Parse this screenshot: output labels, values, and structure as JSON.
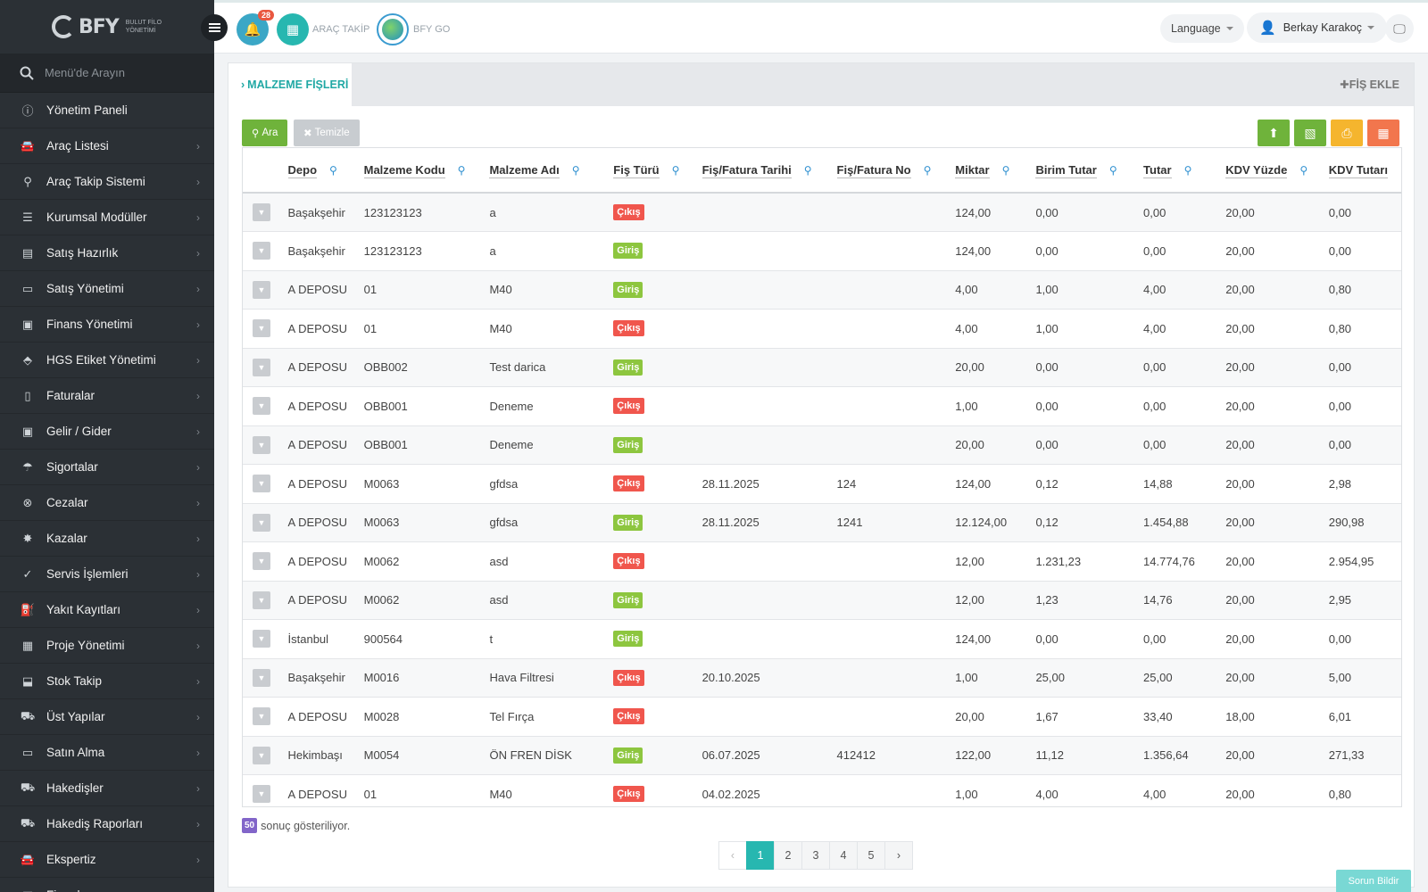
{
  "brand": {
    "name": "BFY",
    "subtitle_line1": "BULUT FİLO",
    "subtitle_line2": "YÖNETİMİ"
  },
  "sidebar": {
    "search_placeholder": "Menü'de Arayın",
    "items": [
      {
        "label": "Yönetim Paneli",
        "icon": "info-icon",
        "glyph": "ⓘ"
      },
      {
        "label": "Araç Listesi",
        "icon": "car-icon",
        "glyph": "🚘"
      },
      {
        "label": "Araç Takip Sistemi",
        "icon": "map-pin-icon",
        "glyph": "⚲"
      },
      {
        "label": "Kurumsal Modüller",
        "icon": "server-icon",
        "glyph": "☰"
      },
      {
        "label": "Satış Hazırlık",
        "icon": "book-icon",
        "glyph": "▤"
      },
      {
        "label": "Satış Yönetimi",
        "icon": "credit-card-icon",
        "glyph": "▭"
      },
      {
        "label": "Finans Yönetimi",
        "icon": "money-icon",
        "glyph": "▣"
      },
      {
        "label": "HGS Etiket Yönetimi",
        "icon": "tag-icon",
        "glyph": "⬘"
      },
      {
        "label": "Faturalar",
        "icon": "file-icon",
        "glyph": "▯"
      },
      {
        "label": "Gelir / Gider",
        "icon": "cash-icon",
        "glyph": "▣"
      },
      {
        "label": "Sigortalar",
        "icon": "umbrella-icon",
        "glyph": "☂"
      },
      {
        "label": "Cezalar",
        "icon": "x-circle-icon",
        "glyph": "⊗"
      },
      {
        "label": "Kazalar",
        "icon": "car-crash-icon",
        "glyph": "✸"
      },
      {
        "label": "Servis İşlemleri",
        "icon": "check-circle-icon",
        "glyph": "✓"
      },
      {
        "label": "Yakıt Kayıtları",
        "icon": "fuel-icon",
        "glyph": "⛽"
      },
      {
        "label": "Proje Yönetimi",
        "icon": "briefcase-icon",
        "glyph": "▦"
      },
      {
        "label": "Stok Takip",
        "icon": "inbox-icon",
        "glyph": "⬓"
      },
      {
        "label": "Üst Yapılar",
        "icon": "truck-icon",
        "glyph": "⛟"
      },
      {
        "label": "Satın Alma",
        "icon": "card-icon",
        "glyph": "▭"
      },
      {
        "label": "Hakedişler",
        "icon": "truck-icon",
        "glyph": "⛟"
      },
      {
        "label": "Hakediş Raporları",
        "icon": "truck-icon",
        "glyph": "⛟"
      },
      {
        "label": "Ekspertiz",
        "icon": "car-icon",
        "glyph": "🚘"
      },
      {
        "label": "Firmalar",
        "icon": "building-icon",
        "glyph": "▥"
      }
    ]
  },
  "topbar": {
    "notifications_count": "28",
    "arac_takip": "ARAÇ TAKİP",
    "bfy_go": "BFY GO",
    "language": "Language",
    "user_name": "Berkay Karakoç"
  },
  "page": {
    "tab_label": "MALZEME FİŞLERİ",
    "add_label": "FİŞ EKLE",
    "search_btn": "Ara",
    "clear_btn": "Temizle"
  },
  "table": {
    "headers": [
      "Depo",
      "Malzeme Kodu",
      "Malzeme Adı",
      "Fiş Türü",
      "Fiş/Fatura Tarihi",
      "Fiş/Fatura No",
      "Miktar",
      "Birim Tutar",
      "Tutar",
      "KDV Yüzde",
      "KDV Tutarı"
    ],
    "rows": [
      [
        "Başakşehir",
        "123123123",
        "a",
        "Çıkış",
        "",
        "",
        "124,00",
        "0,00",
        "0,00",
        "20,00",
        "0,00"
      ],
      [
        "Başakşehir",
        "123123123",
        "a",
        "Giriş",
        "",
        "",
        "124,00",
        "0,00",
        "0,00",
        "20,00",
        "0,00"
      ],
      [
        "A DEPOSU",
        "01",
        "M40",
        "Giriş",
        "",
        "",
        "4,00",
        "1,00",
        "4,00",
        "20,00",
        "0,80"
      ],
      [
        "A DEPOSU",
        "01",
        "M40",
        "Çıkış",
        "",
        "",
        "4,00",
        "1,00",
        "4,00",
        "20,00",
        "0,80"
      ],
      [
        "A DEPOSU",
        "OBB002",
        "Test darica",
        "Giriş",
        "",
        "",
        "20,00",
        "0,00",
        "0,00",
        "20,00",
        "0,00"
      ],
      [
        "A DEPOSU",
        "OBB001",
        "Deneme",
        "Çıkış",
        "",
        "",
        "1,00",
        "0,00",
        "0,00",
        "20,00",
        "0,00"
      ],
      [
        "A DEPOSU",
        "OBB001",
        "Deneme",
        "Giriş",
        "",
        "",
        "20,00",
        "0,00",
        "0,00",
        "20,00",
        "0,00"
      ],
      [
        "A DEPOSU",
        "M0063",
        "gfdsa",
        "Çıkış",
        "28.11.2025",
        "124",
        "124,00",
        "0,12",
        "14,88",
        "20,00",
        "2,98"
      ],
      [
        "A DEPOSU",
        "M0063",
        "gfdsa",
        "Giriş",
        "28.11.2025",
        "1241",
        "12.124,00",
        "0,12",
        "1.454,88",
        "20,00",
        "290,98"
      ],
      [
        "A DEPOSU",
        "M0062",
        "asd",
        "Çıkış",
        "",
        "",
        "12,00",
        "1.231,23",
        "14.774,76",
        "20,00",
        "2.954,95"
      ],
      [
        "A DEPOSU",
        "M0062",
        "asd",
        "Giriş",
        "",
        "",
        "12,00",
        "1,23",
        "14,76",
        "20,00",
        "2,95"
      ],
      [
        "İstanbul",
        "900564",
        "t",
        "Giriş",
        "",
        "",
        "124,00",
        "0,00",
        "0,00",
        "20,00",
        "0,00"
      ],
      [
        "Başakşehir",
        "M0016",
        "Hava Filtresi",
        "Çıkış",
        "20.10.2025",
        "",
        "1,00",
        "25,00",
        "25,00",
        "20,00",
        "5,00"
      ],
      [
        "A DEPOSU",
        "M0028",
        "Tel Fırça",
        "Çıkış",
        "",
        "",
        "20,00",
        "1,67",
        "33,40",
        "18,00",
        "6,01"
      ],
      [
        "Hekimbaşı",
        "M0054",
        "ÖN FREN DİSK",
        "Giriş",
        "06.07.2025",
        "412412",
        "122,00",
        "11,12",
        "1.356,64",
        "20,00",
        "271,33"
      ],
      [
        "A DEPOSU",
        "01",
        "M40",
        "Çıkış",
        "04.02.2025",
        "",
        "1,00",
        "4,00",
        "4,00",
        "20,00",
        "0,80"
      ]
    ]
  },
  "result": {
    "count": "50",
    "text": "sonuç gösteriliyor."
  },
  "pagination": {
    "prev": "‹",
    "pages": [
      "1",
      "2",
      "3",
      "4",
      "5"
    ],
    "active": "1",
    "next": "›"
  },
  "report_button": "Sorun Bildir",
  "colors": {
    "accent": "#27b7b0",
    "cikis": "#f0564d",
    "giris": "#8dc63f",
    "sidebar": "#2b3035"
  }
}
